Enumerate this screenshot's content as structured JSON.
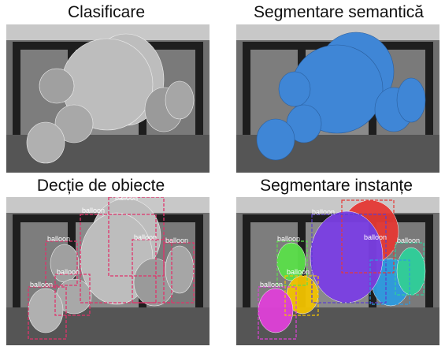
{
  "titles": {
    "classification": "Clasificare",
    "semantic": "Segmentare semantică",
    "detection": "Decție de obiecte",
    "instance": "Segmentare instanțe"
  },
  "box_label": "balloon",
  "colors": {
    "semantic_fill": "#3f86d6",
    "detection_box": "#e0336b",
    "instances": [
      "#e53935",
      "#7b3fe4",
      "#5be04a",
      "#2e9be0",
      "#f2c300",
      "#e040d8",
      "#2fd09a"
    ]
  }
}
